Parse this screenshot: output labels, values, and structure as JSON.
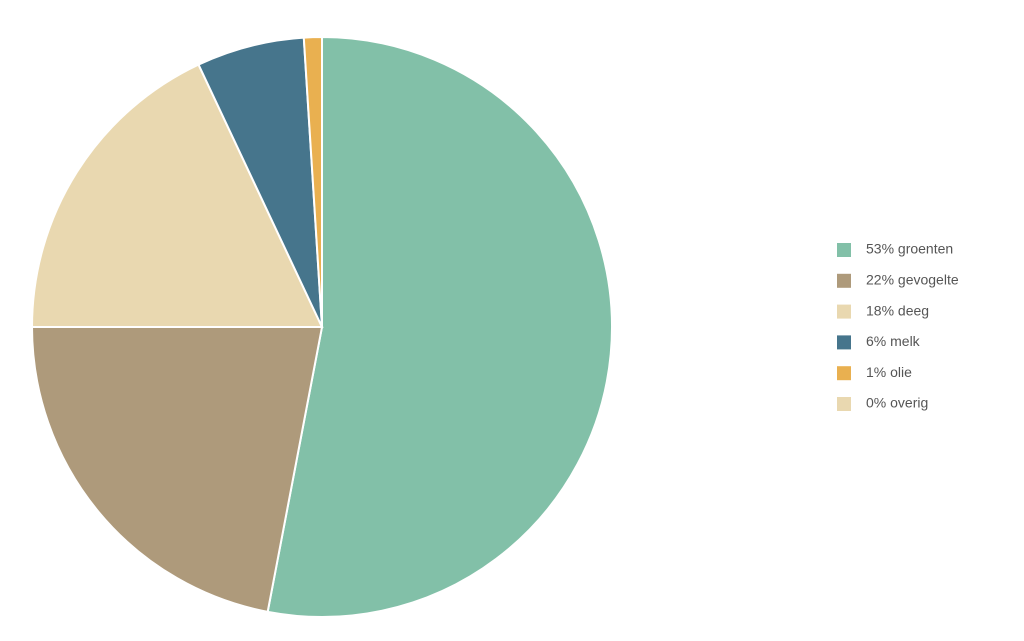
{
  "chart_data": {
    "type": "pie",
    "categories": [
      "53% groenten",
      "22% gevogelte",
      "18% deeg",
      "6% melk",
      "1% olie",
      "0% overig"
    ],
    "values": [
      53,
      22,
      18,
      6,
      1,
      0
    ],
    "colors": [
      "#82c0a8",
      "#ae9a7b",
      "#e9d8b0",
      "#46758c",
      "#e9b050",
      "#e9d8b0"
    ],
    "legend": "right"
  }
}
